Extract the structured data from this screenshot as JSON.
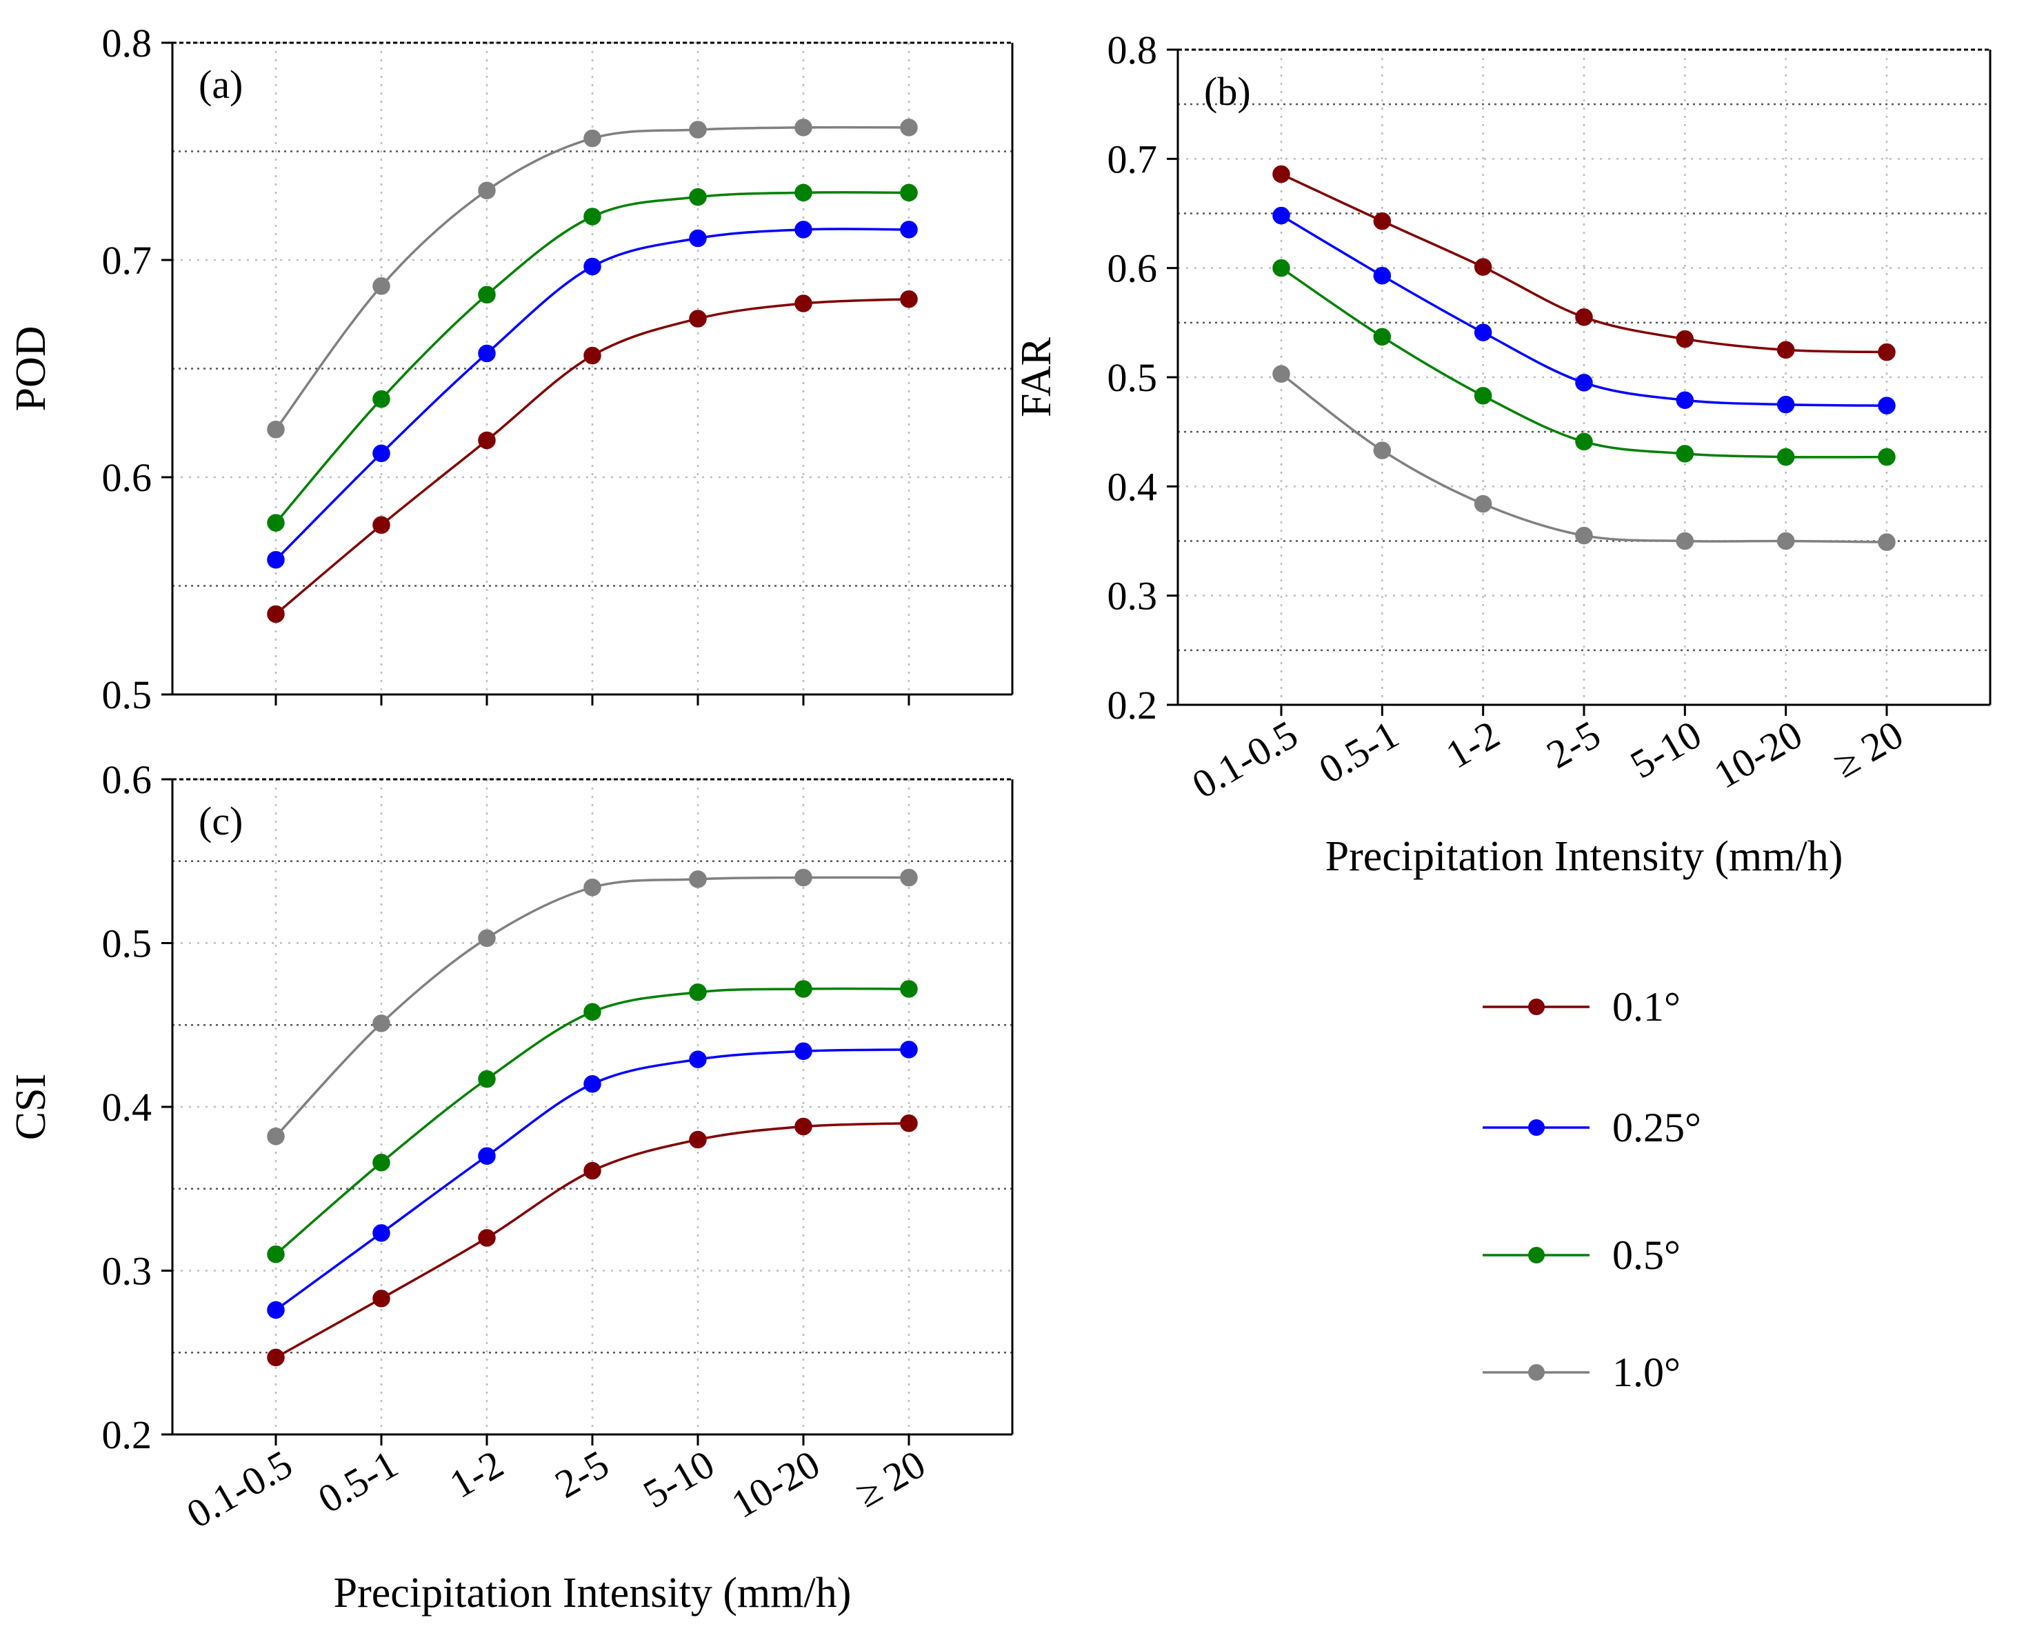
{
  "figure": {
    "categories": [
      "0.1-0.5",
      "0.5-1",
      "1-2",
      "2-5",
      "5-10",
      "10-20",
      "≥ 20"
    ],
    "xlabel": "Precipitation Intensity (mm/h)"
  },
  "legend": {
    "items": [
      {
        "label": "0.1°",
        "color": "#800000"
      },
      {
        "label": "0.25°",
        "color": "#0000ff"
      },
      {
        "label": "0.5°",
        "color": "#008000"
      },
      {
        "label": "1.0°",
        "color": "#808080"
      }
    ]
  },
  "chart_data": [
    {
      "type": "line",
      "panel": "(a)",
      "ylabel": "POD",
      "ylim": [
        0.5,
        0.8
      ],
      "yticks": [
        "0.5",
        "0.6",
        "0.7",
        "0.8"
      ],
      "categories": [
        "0.1-0.5",
        "0.5-1",
        "1-2",
        "2-5",
        "5-10",
        "10-20",
        "≥ 20"
      ],
      "show_xticklabels": false,
      "series": [
        {
          "name": "0.1°",
          "color": "#800000",
          "values": [
            0.537,
            0.578,
            0.617,
            0.656,
            0.673,
            0.68,
            0.682
          ]
        },
        {
          "name": "0.25°",
          "color": "#0000ff",
          "values": [
            0.562,
            0.611,
            0.657,
            0.697,
            0.71,
            0.714,
            0.714
          ]
        },
        {
          "name": "0.5°",
          "color": "#008000",
          "values": [
            0.579,
            0.636,
            0.684,
            0.72,
            0.729,
            0.731,
            0.731
          ]
        },
        {
          "name": "1.0°",
          "color": "#808080",
          "values": [
            0.622,
            0.688,
            0.732,
            0.756,
            0.76,
            0.761,
            0.761
          ]
        }
      ]
    },
    {
      "type": "line",
      "panel": "(b)",
      "ylabel": "FAR",
      "ylim": [
        0.2,
        0.8
      ],
      "yticks": [
        "0.2",
        "0.3",
        "0.4",
        "0.5",
        "0.6",
        "0.7",
        "0.8"
      ],
      "categories": [
        "0.1-0.5",
        "0.5-1",
        "1-2",
        "2-5",
        "5-10",
        "10-20",
        "≥ 20"
      ],
      "show_xticklabels": true,
      "xlabel": "Precipitation Intensity (mm/h)",
      "series": [
        {
          "name": "0.1°",
          "color": "#800000",
          "values": [
            0.686,
            0.643,
            0.601,
            0.555,
            0.535,
            0.525,
            0.523
          ]
        },
        {
          "name": "0.25°",
          "color": "#0000ff",
          "values": [
            0.648,
            0.593,
            0.541,
            0.495,
            0.479,
            0.475,
            0.474
          ]
        },
        {
          "name": "0.5°",
          "color": "#008000",
          "values": [
            0.6,
            0.537,
            0.483,
            0.441,
            0.43,
            0.427,
            0.427
          ]
        },
        {
          "name": "1.0°",
          "color": "#808080",
          "values": [
            0.503,
            0.433,
            0.384,
            0.355,
            0.35,
            0.35,
            0.349
          ]
        }
      ]
    },
    {
      "type": "line",
      "panel": "(c)",
      "ylabel": "CSI",
      "ylim": [
        0.2,
        0.6
      ],
      "yticks": [
        "0.2",
        "0.3",
        "0.4",
        "0.5",
        "0.6"
      ],
      "categories": [
        "0.1-0.5",
        "0.5-1",
        "1-2",
        "2-5",
        "5-10",
        "10-20",
        "≥ 20"
      ],
      "show_xticklabels": true,
      "xlabel": "Precipitation Intensity (mm/h)",
      "series": [
        {
          "name": "0.1°",
          "color": "#800000",
          "values": [
            0.247,
            0.283,
            0.32,
            0.361,
            0.38,
            0.388,
            0.39
          ]
        },
        {
          "name": "0.25°",
          "color": "#0000ff",
          "values": [
            0.276,
            0.323,
            0.37,
            0.414,
            0.429,
            0.434,
            0.435
          ]
        },
        {
          "name": "0.5°",
          "color": "#008000",
          "values": [
            0.31,
            0.366,
            0.417,
            0.458,
            0.47,
            0.472,
            0.472
          ]
        },
        {
          "name": "1.0°",
          "color": "#808080",
          "values": [
            0.382,
            0.451,
            0.503,
            0.534,
            0.539,
            0.54,
            0.54
          ]
        }
      ]
    }
  ]
}
